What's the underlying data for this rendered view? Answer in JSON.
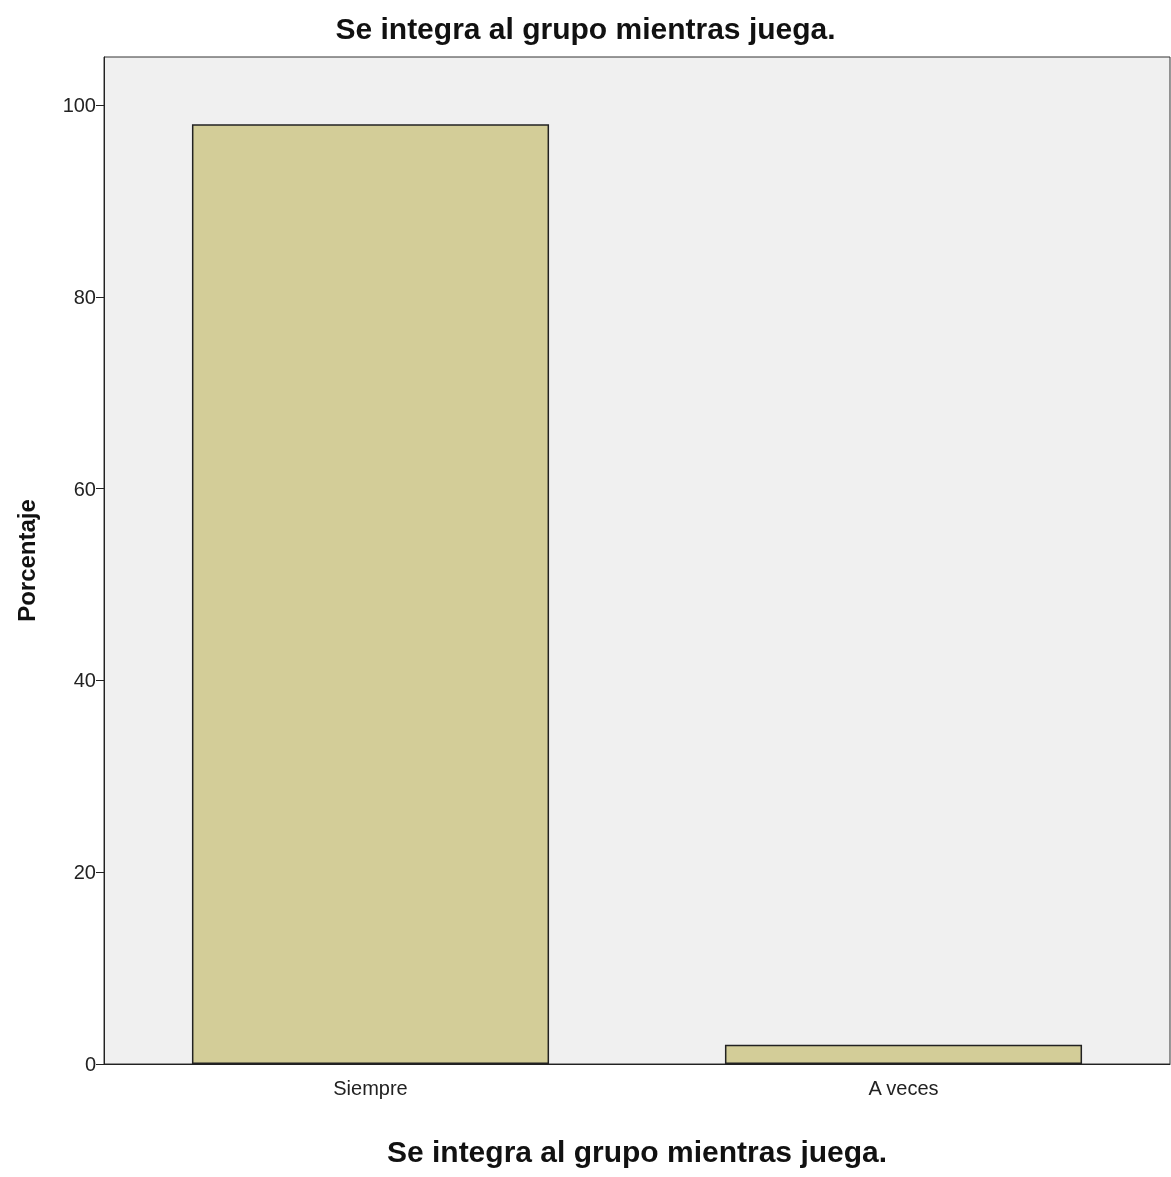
{
  "chart_data": {
    "type": "bar",
    "title": "Se integra al grupo mientras juega.",
    "xlabel": "Se integra al grupo mientras juega.",
    "ylabel": "Porcentaje",
    "categories": [
      "Siempre",
      "A veces"
    ],
    "values": [
      98,
      2
    ],
    "color": "#d3cd98",
    "ylim": [
      0,
      105
    ],
    "yticks": [
      0,
      20,
      40,
      60,
      80,
      100
    ]
  }
}
